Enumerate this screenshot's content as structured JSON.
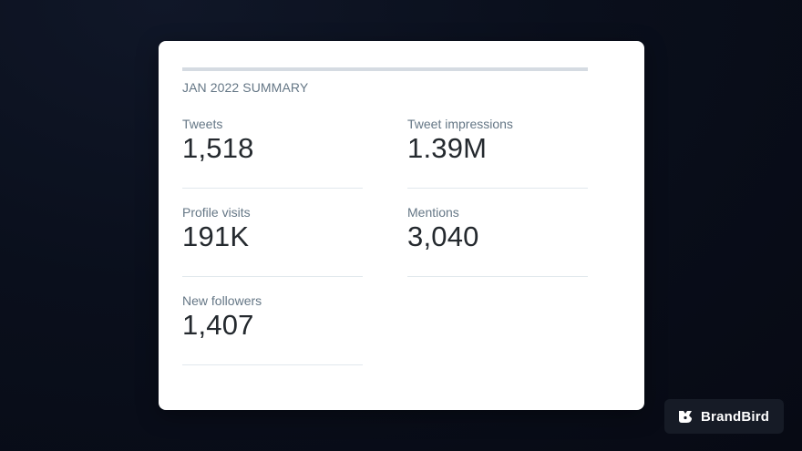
{
  "summary": {
    "title": "JAN 2022 SUMMARY",
    "stats": [
      {
        "label": "Tweets",
        "value": "1,518"
      },
      {
        "label": "Tweet impressions",
        "value": "1.39M"
      },
      {
        "label": "Profile visits",
        "value": "191K"
      },
      {
        "label": "Mentions",
        "value": "3,040"
      },
      {
        "label": "New followers",
        "value": "1,407"
      }
    ]
  },
  "brand": {
    "name": "BrandBird",
    "icon": "brandbird-logo-icon"
  },
  "colors": {
    "background": "#0a0f1c",
    "card": "#ffffff",
    "label": "#657786",
    "value": "#24292e",
    "badge": "#161b26"
  }
}
